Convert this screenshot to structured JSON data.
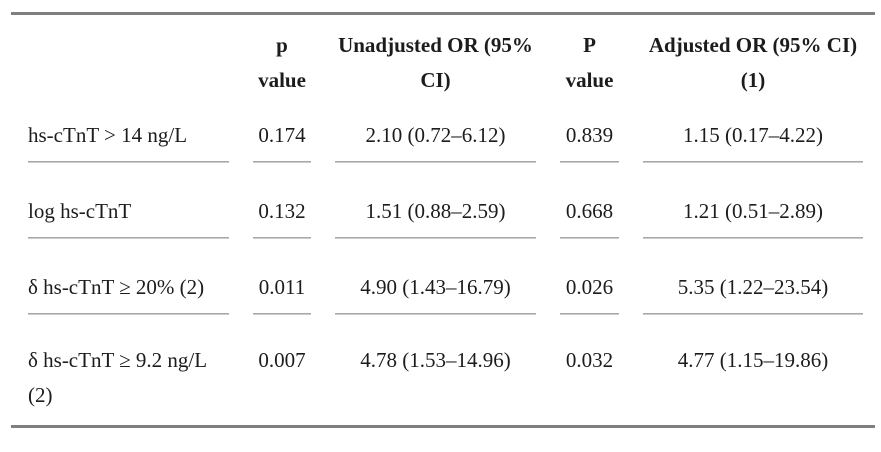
{
  "table": {
    "columns": [
      {
        "line1": "",
        "line2": ""
      },
      {
        "line1": "p",
        "line2": "value"
      },
      {
        "line1": "Unadjusted OR (95%",
        "line2": "CI)"
      },
      {
        "line1": "P",
        "line2": "value"
      },
      {
        "line1": "Adjusted OR (95% CI)",
        "line2": "(1)"
      }
    ],
    "rows": [
      {
        "label": "hs-cTnT > 14 ng/L",
        "p_unadjusted": "0.174",
        "unadjusted_or": "2.10 (0.72–6.12)",
        "p_adjusted": "0.839",
        "adjusted_or": "1.15 (0.17–4.22)"
      },
      {
        "label": "log hs-cTnT",
        "p_unadjusted": "0.132",
        "unadjusted_or": "1.51 (0.88–2.59)",
        "p_adjusted": "0.668",
        "adjusted_or": "1.21 (0.51–2.89)"
      },
      {
        "label": "δ hs-cTnT ≥ 20% (2)",
        "p_unadjusted": "0.011",
        "unadjusted_or": "4.90 (1.43–16.79)",
        "p_adjusted": "0.026",
        "adjusted_or": "5.35 (1.22–23.54)"
      },
      {
        "label": "δ hs-cTnT ≥ 9.2 ng/L (2)",
        "p_unadjusted": "0.007",
        "unadjusted_or": "4.78 (1.53–14.96)",
        "p_adjusted": "0.032",
        "adjusted_or": "4.77 (1.15–19.86)"
      }
    ],
    "colors": {
      "rule_heavy": "#7f7f7f",
      "rule_light": "#989898",
      "text": "#1c1c1c",
      "background": "#ffffff"
    }
  }
}
